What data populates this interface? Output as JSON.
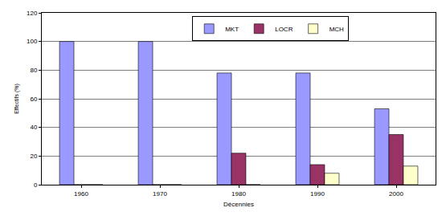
{
  "chart_data": {
    "type": "bar",
    "xlabel": "Décennies",
    "ylabel": "Effectifs (%)",
    "categories": [
      "1960",
      "1970",
      "1980",
      "1990",
      "2000"
    ],
    "series": [
      {
        "name": "MKT",
        "color": "#9999ff",
        "values": [
          100,
          100,
          78,
          78,
          53
        ]
      },
      {
        "name": "LOCR",
        "color": "#993366",
        "values": [
          0,
          0,
          22,
          14,
          35
        ]
      },
      {
        "name": "MCH",
        "color": "#ffffcc",
        "values": [
          0,
          0,
          0,
          8,
          13
        ]
      }
    ],
    "ylim": [
      0,
      120
    ],
    "yticks": [
      0,
      20,
      40,
      60,
      80,
      100,
      120
    ],
    "grid": true,
    "legend": "top right"
  }
}
